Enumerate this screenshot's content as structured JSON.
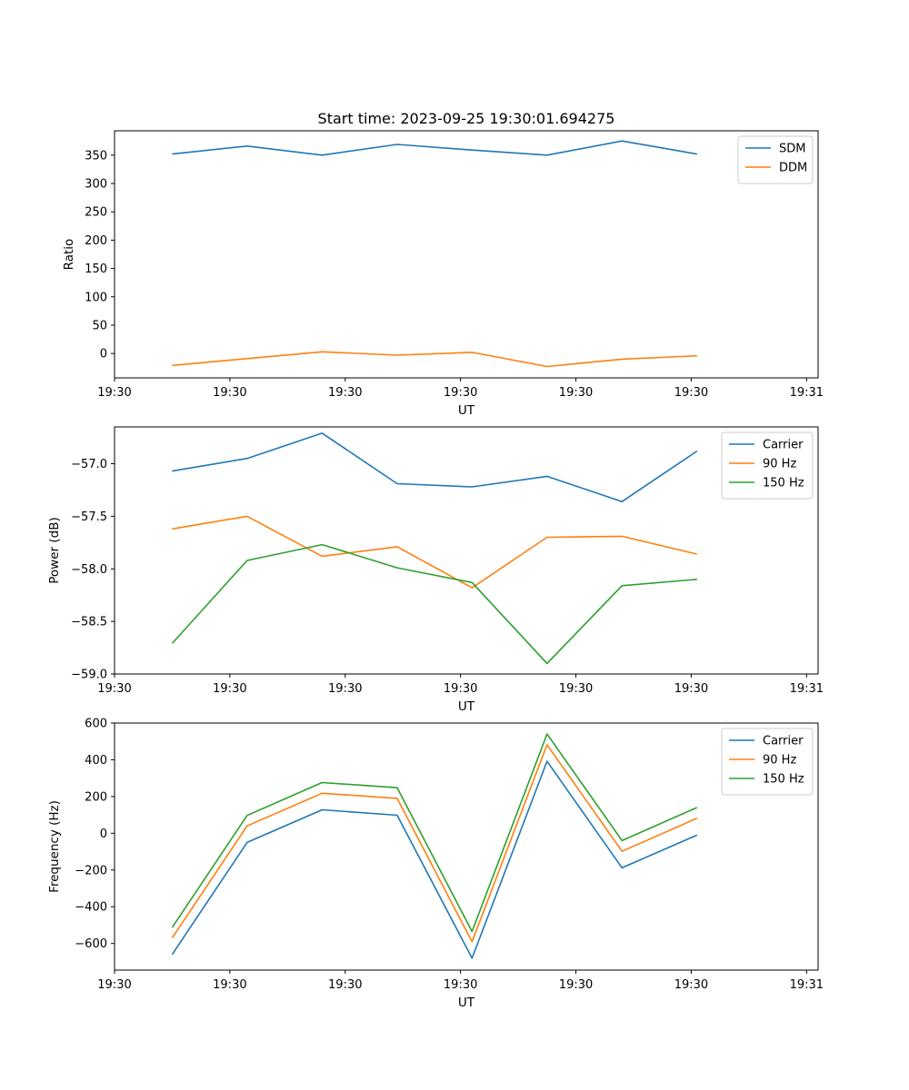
{
  "figure_title": "Start time: 2023-09-25 19:30:01.694275",
  "colors": {
    "blue": "#1f77b4",
    "orange": "#ff7f0e",
    "green": "#2ca02c"
  },
  "chart_data": [
    {
      "type": "line",
      "title": "Start time: 2023-09-25 19:30:01.694275",
      "xlabel": "UT",
      "ylabel": "Ratio",
      "xlim": [
        0,
        6.1
      ],
      "ylim": [
        -43,
        393
      ],
      "x": [
        0.5,
        1.15,
        1.8,
        2.45,
        3.1,
        3.75,
        4.4,
        5.05
      ],
      "xticks": [
        0,
        1,
        2,
        3,
        4,
        5,
        6
      ],
      "xtick_labels": [
        "19:30",
        "19:30",
        "19:30",
        "19:30",
        "19:30",
        "19:30",
        "19:31"
      ],
      "yticks": [
        0,
        50,
        100,
        150,
        200,
        250,
        300,
        350
      ],
      "ytick_labels": [
        "0",
        "50",
        "100",
        "150",
        "200",
        "250",
        "300",
        "350"
      ],
      "legend": "top-right",
      "series": [
        {
          "name": "SDM",
          "color": "#1f77b4",
          "values": [
            352,
            366,
            350,
            369,
            359,
            350,
            375,
            352
          ]
        },
        {
          "name": "DDM",
          "color": "#ff7f0e",
          "values": [
            -21,
            -9,
            3,
            -3,
            2,
            -23,
            -10,
            -4
          ]
        }
      ]
    },
    {
      "type": "line",
      "title": "",
      "xlabel": "UT",
      "ylabel": "Power (dB)",
      "xlim": [
        0,
        6.1
      ],
      "ylim": [
        -59.0,
        -56.65
      ],
      "x": [
        0.5,
        1.15,
        1.8,
        2.45,
        3.1,
        3.75,
        4.4,
        5.05
      ],
      "xticks": [
        0,
        1,
        2,
        3,
        4,
        5,
        6
      ],
      "xtick_labels": [
        "19:30",
        "19:30",
        "19:30",
        "19:30",
        "19:30",
        "19:30",
        "19:31"
      ],
      "yticks": [
        -59.0,
        -58.5,
        -58.0,
        -57.5,
        -57.0
      ],
      "ytick_labels": [
        "−59.0",
        "−58.5",
        "−58.0",
        "−57.5",
        "−57.0"
      ],
      "legend": "top-right",
      "series": [
        {
          "name": "Carrier",
          "color": "#1f77b4",
          "values": [
            -57.07,
            -56.95,
            -56.71,
            -57.19,
            -57.22,
            -57.12,
            -57.36,
            -56.88
          ]
        },
        {
          "name": "90 Hz",
          "color": "#ff7f0e",
          "values": [
            -57.62,
            -57.5,
            -57.88,
            -57.79,
            -58.18,
            -57.7,
            -57.69,
            -57.86
          ]
        },
        {
          "name": "150 Hz",
          "color": "#2ca02c",
          "values": [
            -58.71,
            -57.92,
            -57.77,
            -57.99,
            -58.13,
            -58.9,
            -58.16,
            -58.1
          ]
        }
      ]
    },
    {
      "type": "line",
      "title": "",
      "xlabel": "UT",
      "ylabel": "Frequency (Hz)",
      "xlim": [
        0,
        6.1
      ],
      "ylim": [
        -745,
        600
      ],
      "x": [
        0.5,
        1.15,
        1.8,
        2.45,
        3.1,
        3.75,
        4.4,
        5.05
      ],
      "xticks": [
        0,
        1,
        2,
        3,
        4,
        5,
        6
      ],
      "xtick_labels": [
        "19:30",
        "19:30",
        "19:30",
        "19:30",
        "19:30",
        "19:30",
        "19:31"
      ],
      "yticks": [
        -600,
        -400,
        -200,
        0,
        200,
        400,
        600
      ],
      "ytick_labels": [
        "−600",
        "−400",
        "−200",
        "0",
        "200",
        "400",
        "600"
      ],
      "legend": "top-right",
      "series": [
        {
          "name": "Carrier",
          "color": "#1f77b4",
          "values": [
            -660,
            -50,
            128,
            98,
            -680,
            392,
            -188,
            -10
          ]
        },
        {
          "name": "90 Hz",
          "color": "#ff7f0e",
          "values": [
            -570,
            40,
            218,
            190,
            -590,
            482,
            -98,
            82
          ]
        },
        {
          "name": "150 Hz",
          "color": "#2ca02c",
          "values": [
            -513,
            97,
            276,
            248,
            -535,
            540,
            -40,
            140
          ]
        }
      ]
    }
  ]
}
